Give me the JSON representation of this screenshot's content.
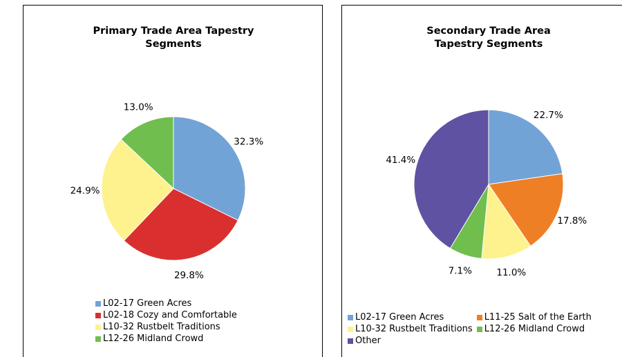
{
  "chart_data": [
    {
      "type": "pie",
      "title": "Primary Trade Area Tapestry Segments",
      "categories": [
        "L02-17 Green Acres",
        "L02-18 Cozy and Comfortable",
        "L10-32 Rustbelt Traditions",
        "L12-26 Midland Crowd"
      ],
      "values": [
        32.3,
        29.8,
        24.9,
        13.0
      ],
      "value_labels": [
        "32.3%",
        "29.8%",
        "24.9%",
        "13.0%"
      ],
      "colors": [
        "#72a3d6",
        "#d9302f",
        "#fdf28d",
        "#6fbe4e"
      ]
    },
    {
      "type": "pie",
      "title": "Secondary Trade Area Tapestry Segments",
      "categories": [
        "L02-17 Green Acres",
        "L11-25 Salt of the Earth",
        "L10-32 Rustbelt Traditions",
        "L12-26 Midland Crowd",
        "Other"
      ],
      "values": [
        22.7,
        17.8,
        11.0,
        7.1,
        41.4
      ],
      "value_labels": [
        "22.7%",
        "17.8%",
        "11.0%",
        "7.1%",
        "41.4%"
      ],
      "colors": [
        "#72a3d6",
        "#ee7f25",
        "#fdf28d",
        "#6fbe4e",
        "#5f52a3"
      ]
    }
  ]
}
